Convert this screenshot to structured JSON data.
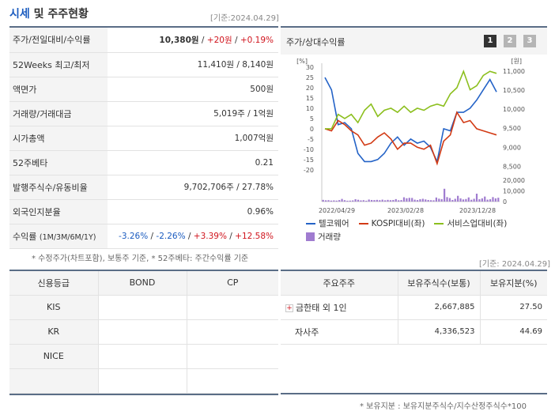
{
  "header": {
    "title_main": "시세",
    "title_rest": " 및 주주현황",
    "date": "[기준:2024.04.29]"
  },
  "price_table": {
    "rows": [
      {
        "label": "주가/전일대비/수익률",
        "v1": "10,380원",
        "sep1": " / ",
        "v2": "+20원",
        "sep2": " / ",
        "v3": "+0.19%"
      },
      {
        "label": "52Weeks 최고/최저",
        "value": "11,410원 / 8,140원"
      },
      {
        "label": "액면가",
        "value": "500원"
      },
      {
        "label": "거래량/거래대금",
        "value": "5,019주 / 1억원"
      },
      {
        "label": "시가총액",
        "value": "1,007억원"
      },
      {
        "label": "52주베타",
        "value": "0.21"
      },
      {
        "label": "발행주식수/유동비율",
        "value": "9,702,706주 / 27.78%"
      },
      {
        "label": "외국인지분율",
        "value": "0.96%"
      }
    ],
    "return_row": {
      "label": "수익률",
      "sub": "(1M/3M/6M/1Y)",
      "r1": "-3.26%",
      "r2": "-2.26%",
      "r3": "+3.39%",
      "r4": "+12.58%",
      "sep": " / "
    },
    "note": "* 수정주가(차트포함), 보통주 기준, * 52주베타: 주간수익률 기준"
  },
  "chart_panel": {
    "title": "주가/상대수익률",
    "pages": [
      "1",
      "2",
      "3"
    ],
    "colors": {
      "stock": "#2463c7",
      "kospi": "#d23a14",
      "sector": "#8cbf1e",
      "volume": "#a07cd0",
      "page_active": "#333333",
      "page_inactive": "#b5b5b5"
    }
  },
  "chart_data": {
    "type": "line",
    "left_axis": {
      "label": "[%]",
      "ticks": [
        "30",
        "25",
        "20",
        "15",
        "10",
        "5",
        "0",
        "-5",
        "-10",
        "-15",
        "-20"
      ],
      "range": [
        -22,
        30
      ]
    },
    "right_axis": {
      "label": "[원]",
      "ticks": [
        "11,000",
        "10,500",
        "10,000",
        "9,500",
        "9,000",
        "8,500"
      ],
      "range": [
        8300,
        11100
      ]
    },
    "volume_axis": {
      "ticks": [
        "20,000",
        "10,000",
        "0"
      ],
      "range": [
        0,
        20000
      ]
    },
    "x_ticks": [
      "2022/04/29",
      "2023/02/28",
      "2023/12/28"
    ],
    "series": [
      {
        "name": "텔코웨어",
        "values": [
          25,
          19,
          2,
          3,
          0,
          -12,
          -16,
          -16,
          -15,
          -12,
          -7,
          -4,
          -8,
          -5,
          -7,
          -6,
          -9,
          -16,
          0,
          -1,
          8,
          8,
          10,
          14,
          19,
          24,
          18
        ]
      },
      {
        "name": "KOSPI대비(좌)",
        "values": [
          0,
          -1,
          4,
          2,
          -1,
          -3,
          -8,
          -7,
          -4,
          -2,
          -5,
          -10,
          -7,
          -7,
          -9,
          -10,
          -8,
          -17,
          -6,
          -3,
          8,
          3,
          4,
          0,
          -1,
          -2,
          -3
        ]
      },
      {
        "name": "서비스업대비(좌)",
        "values": [
          0,
          0,
          7,
          5,
          7,
          3,
          9,
          12,
          6,
          9,
          10,
          8,
          11,
          8,
          10,
          9,
          11,
          12,
          11,
          17,
          20,
          28,
          19,
          21,
          26,
          28,
          27
        ]
      }
    ],
    "volume": {
      "name": "거래량",
      "values": [
        1600,
        1200,
        1300,
        900,
        1100,
        900,
        1400,
        2500,
        1300,
        800,
        900,
        1100,
        2200,
        1700,
        1100,
        1300,
        800,
        1900,
        1500,
        1400,
        1600,
        1300,
        1800,
        1200,
        1600,
        1300,
        1500,
        2300,
        1200,
        1400,
        4000,
        3100,
        3500,
        3400,
        1800,
        1400,
        2200,
        2600,
        2000,
        1500,
        1300,
        1200,
        3800,
        2700,
        2300,
        12000,
        4200,
        3300,
        1500,
        2600,
        5400,
        3000,
        2000,
        2400,
        3900,
        1700,
        2600,
        7400,
        2200,
        3000,
        4700,
        1800,
        2200,
        4200,
        3000,
        3600
      ]
    }
  },
  "credit_table": {
    "headers": [
      "신용등급",
      "BOND",
      "CP"
    ],
    "rows": [
      [
        "KIS",
        "",
        ""
      ],
      [
        "KR",
        "",
        ""
      ],
      [
        "NICE",
        "",
        ""
      ],
      [
        "",
        "",
        ""
      ]
    ]
  },
  "share_panel": {
    "date": "[기준: 2024.04.29]",
    "headers": [
      "주요주주",
      "보유주식수(보통)",
      "보유지분(%)"
    ],
    "rows": [
      {
        "name": "금한태 외 1인",
        "shares": "2,667,885",
        "pct": "27.50",
        "expand": "+"
      },
      {
        "name": "자사주",
        "shares": "4,336,523",
        "pct": "44.69",
        "expand": ""
      }
    ],
    "note": "* 보유지분 : 보유지분주식수/지수산정주식수*100"
  }
}
